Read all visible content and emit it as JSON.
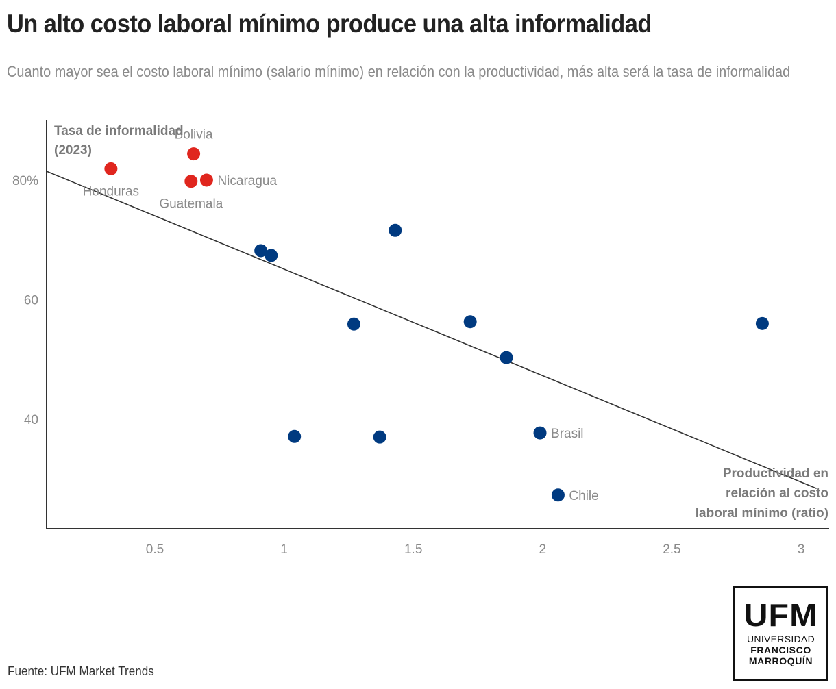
{
  "header": {
    "title": "Un alto costo laboral mínimo produce una alta informalidad",
    "subtitle": "Cuanto mayor sea el costo laboral mínimo (salario mínimo) en relación con la productividad, más alta será la tasa de informalidad"
  },
  "footer": {
    "source": "Fuente: UFM Market Trends",
    "logo": {
      "big": "UFM",
      "line1": "UNIVERSIDAD",
      "line2": "FRANCISCO",
      "line3": "MARROQUÍN"
    }
  },
  "colors": {
    "highlight": "#e0261e",
    "default": "#003a80",
    "trendline": "#333333",
    "axis": "#333333"
  },
  "chart_data": {
    "type": "scatter",
    "title": "Un alto costo laboral mínimo produce una alta informalidad",
    "xlabel": "Productividad en relación al costo laboral mínimo (ratio)",
    "ylabel": "Tasa de informalidad (2023)",
    "xlabel_lines": [
      "Productividad en",
      "relación al costo",
      "laboral mínimo (ratio)"
    ],
    "ylabel_lines": [
      "Tasa de informalidad",
      "(2023)"
    ],
    "xlim": [
      0.08,
      3.11
    ],
    "ylim": [
      22,
      94
    ],
    "x_ticks": [
      0.5,
      1,
      1.5,
      2,
      2.5,
      3
    ],
    "x_tick_labels": [
      "0.5",
      "1",
      "1.5",
      "2",
      "2.5",
      "3"
    ],
    "y_ticks": [
      40,
      60,
      80
    ],
    "y_tick_labels": [
      "40",
      "60",
      "80%"
    ],
    "grid": false,
    "legend": "none",
    "trendline": {
      "x": [
        0.08,
        3.06
      ],
      "y": [
        81.5,
        28.4
      ]
    },
    "points": [
      {
        "label": "Honduras",
        "x": 0.33,
        "y": 81.9,
        "highlight": true,
        "label_pos": "below"
      },
      {
        "label": "Bolivia",
        "x": 0.65,
        "y": 84.4,
        "highlight": true,
        "label_pos": "above"
      },
      {
        "label": "Guatemala",
        "x": 0.64,
        "y": 79.8,
        "highlight": true,
        "label_pos": "below"
      },
      {
        "label": "Nicaragua",
        "x": 0.7,
        "y": 80.0,
        "highlight": true,
        "label_pos": "right"
      },
      {
        "label": "",
        "x": 0.91,
        "y": 68.2,
        "highlight": false
      },
      {
        "label": "",
        "x": 0.95,
        "y": 67.4,
        "highlight": false
      },
      {
        "label": "",
        "x": 1.43,
        "y": 71.6,
        "highlight": false
      },
      {
        "label": "",
        "x": 1.27,
        "y": 55.9,
        "highlight": false
      },
      {
        "label": "",
        "x": 1.72,
        "y": 56.3,
        "highlight": false
      },
      {
        "label": "",
        "x": 1.86,
        "y": 50.3,
        "highlight": false
      },
      {
        "label": "",
        "x": 1.04,
        "y": 37.1,
        "highlight": false
      },
      {
        "label": "",
        "x": 1.37,
        "y": 37.0,
        "highlight": false
      },
      {
        "label": "Brasil",
        "x": 1.99,
        "y": 37.7,
        "highlight": false,
        "label_pos": "right"
      },
      {
        "label": "Chile",
        "x": 2.06,
        "y": 27.3,
        "highlight": false,
        "label_pos": "right"
      },
      {
        "label": "",
        "x": 2.85,
        "y": 56.0,
        "highlight": false
      }
    ]
  }
}
